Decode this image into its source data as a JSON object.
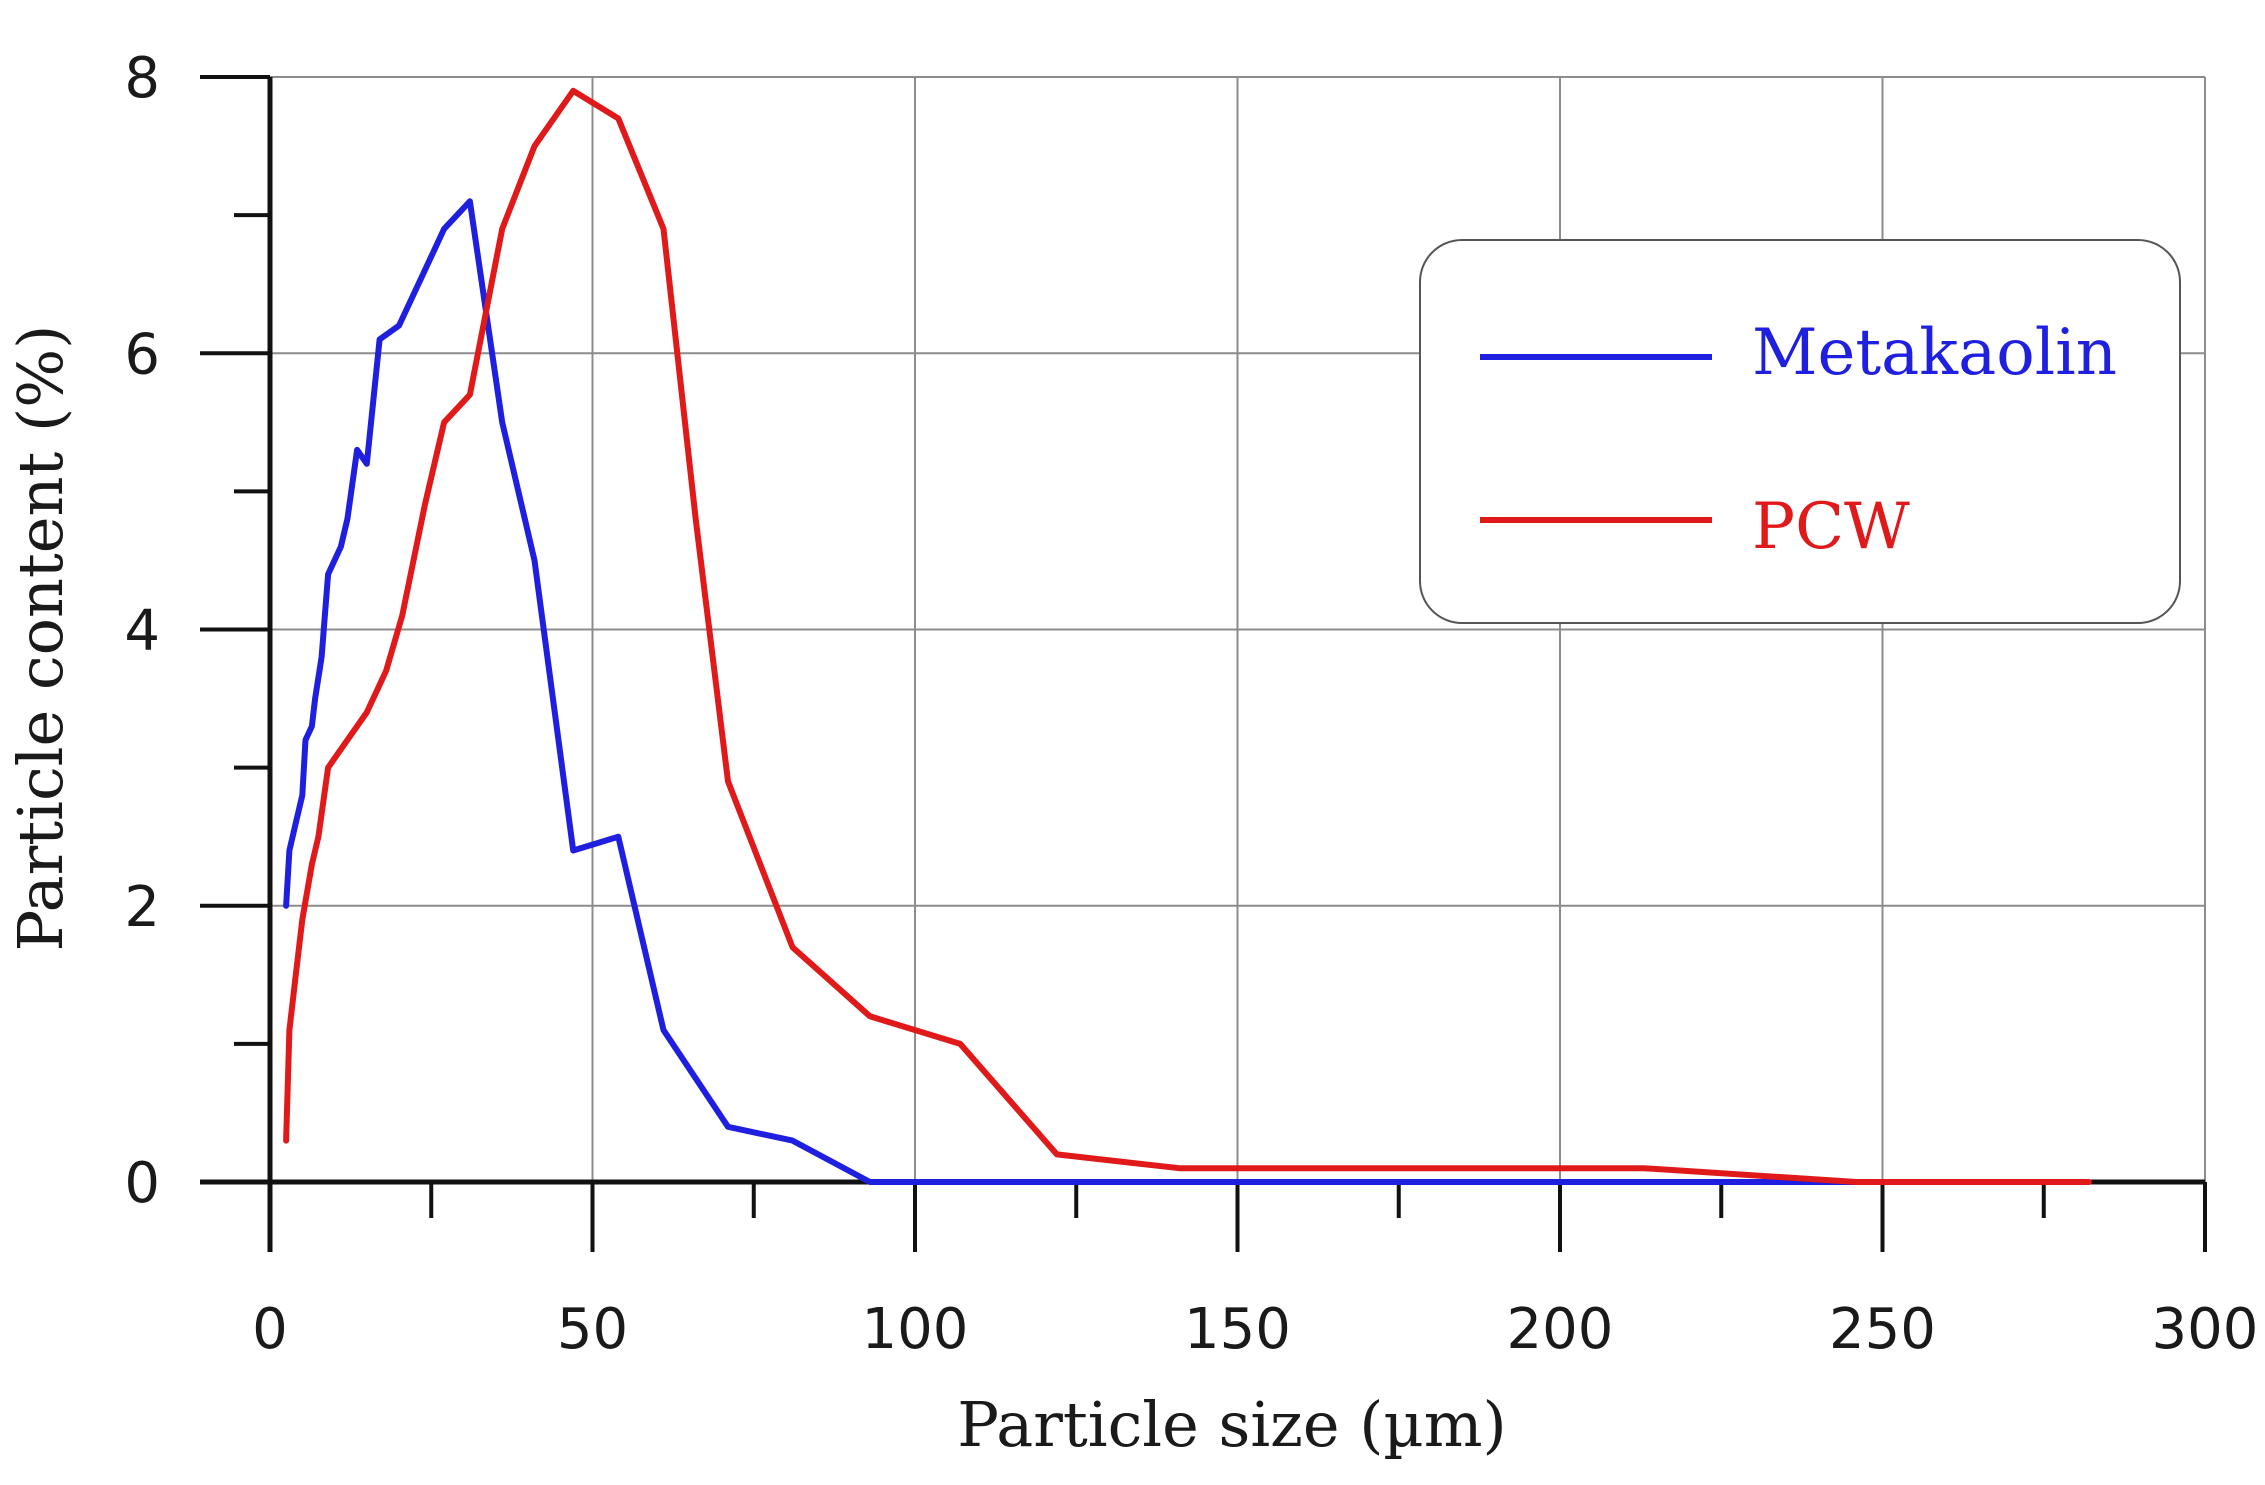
{
  "chart_data": {
    "type": "line",
    "title": "",
    "xlabel": "Particle size (µm)",
    "ylabel": "Particle content (%)",
    "xlim": [
      0,
      300
    ],
    "ylim": [
      0,
      8
    ],
    "x_ticks": [
      0,
      50,
      100,
      150,
      200,
      250,
      300
    ],
    "y_ticks": [
      0,
      2,
      4,
      6,
      8
    ],
    "x_tick_labels": [
      "0",
      "50",
      "100",
      "150",
      "200",
      "250",
      "300"
    ],
    "y_tick_labels": [
      "0",
      "2",
      "4",
      "6",
      "8"
    ],
    "grid": true,
    "legend_position": "top-right",
    "series": [
      {
        "name": "Metakaolin",
        "color": "#1f1fe0",
        "points": [
          [
            2.5,
            2.0
          ],
          [
            3.0,
            2.4
          ],
          [
            4.0,
            2.6
          ],
          [
            5.0,
            2.8
          ],
          [
            5.5,
            3.2
          ],
          [
            6.5,
            3.3
          ],
          [
            7.0,
            3.5
          ],
          [
            8.0,
            3.8
          ],
          [
            9.0,
            4.4
          ],
          [
            10.0,
            4.5
          ],
          [
            11.0,
            4.6
          ],
          [
            12.0,
            4.8
          ],
          [
            13.5,
            5.3
          ],
          [
            15.0,
            5.2
          ],
          [
            17.0,
            6.1
          ],
          [
            20.0,
            6.2
          ],
          [
            24.0,
            6.6
          ],
          [
            27.0,
            6.9
          ],
          [
            31.0,
            7.1
          ],
          [
            36.0,
            5.5
          ],
          [
            41.0,
            4.5
          ],
          [
            47.0,
            2.4
          ],
          [
            54.0,
            2.5
          ],
          [
            61.0,
            1.1
          ],
          [
            71.0,
            0.4
          ],
          [
            81.0,
            0.3
          ],
          [
            93.0,
            0.0
          ],
          [
            120.0,
            0.0
          ],
          [
            160.0,
            0.0
          ],
          [
            200.0,
            0.0
          ],
          [
            240.0,
            0.0
          ],
          [
            280.0,
            0.0
          ]
        ]
      },
      {
        "name": "PCW",
        "color": "#e01a1a",
        "points": [
          [
            2.5,
            0.3
          ],
          [
            3.0,
            1.1
          ],
          [
            4.0,
            1.5
          ],
          [
            5.0,
            1.9
          ],
          [
            6.5,
            2.3
          ],
          [
            7.5,
            2.5
          ],
          [
            9.0,
            3.0
          ],
          [
            12.0,
            3.2
          ],
          [
            15.0,
            3.4
          ],
          [
            18.0,
            3.7
          ],
          [
            20.5,
            4.1
          ],
          [
            24.0,
            4.9
          ],
          [
            27.0,
            5.5
          ],
          [
            31.0,
            5.7
          ],
          [
            36.0,
            6.9
          ],
          [
            41.0,
            7.5
          ],
          [
            47.0,
            7.9
          ],
          [
            54.0,
            7.7
          ],
          [
            61.0,
            6.9
          ],
          [
            66.0,
            4.8
          ],
          [
            71.0,
            2.9
          ],
          [
            81.0,
            1.7
          ],
          [
            93.0,
            1.2
          ],
          [
            107.0,
            1.0
          ],
          [
            122.0,
            0.2
          ],
          [
            141.0,
            0.1
          ],
          [
            162.0,
            0.1
          ],
          [
            187.0,
            0.1
          ],
          [
            213.0,
            0.1
          ],
          [
            246.0,
            0.0
          ],
          [
            282.0,
            0.0
          ]
        ]
      }
    ]
  }
}
